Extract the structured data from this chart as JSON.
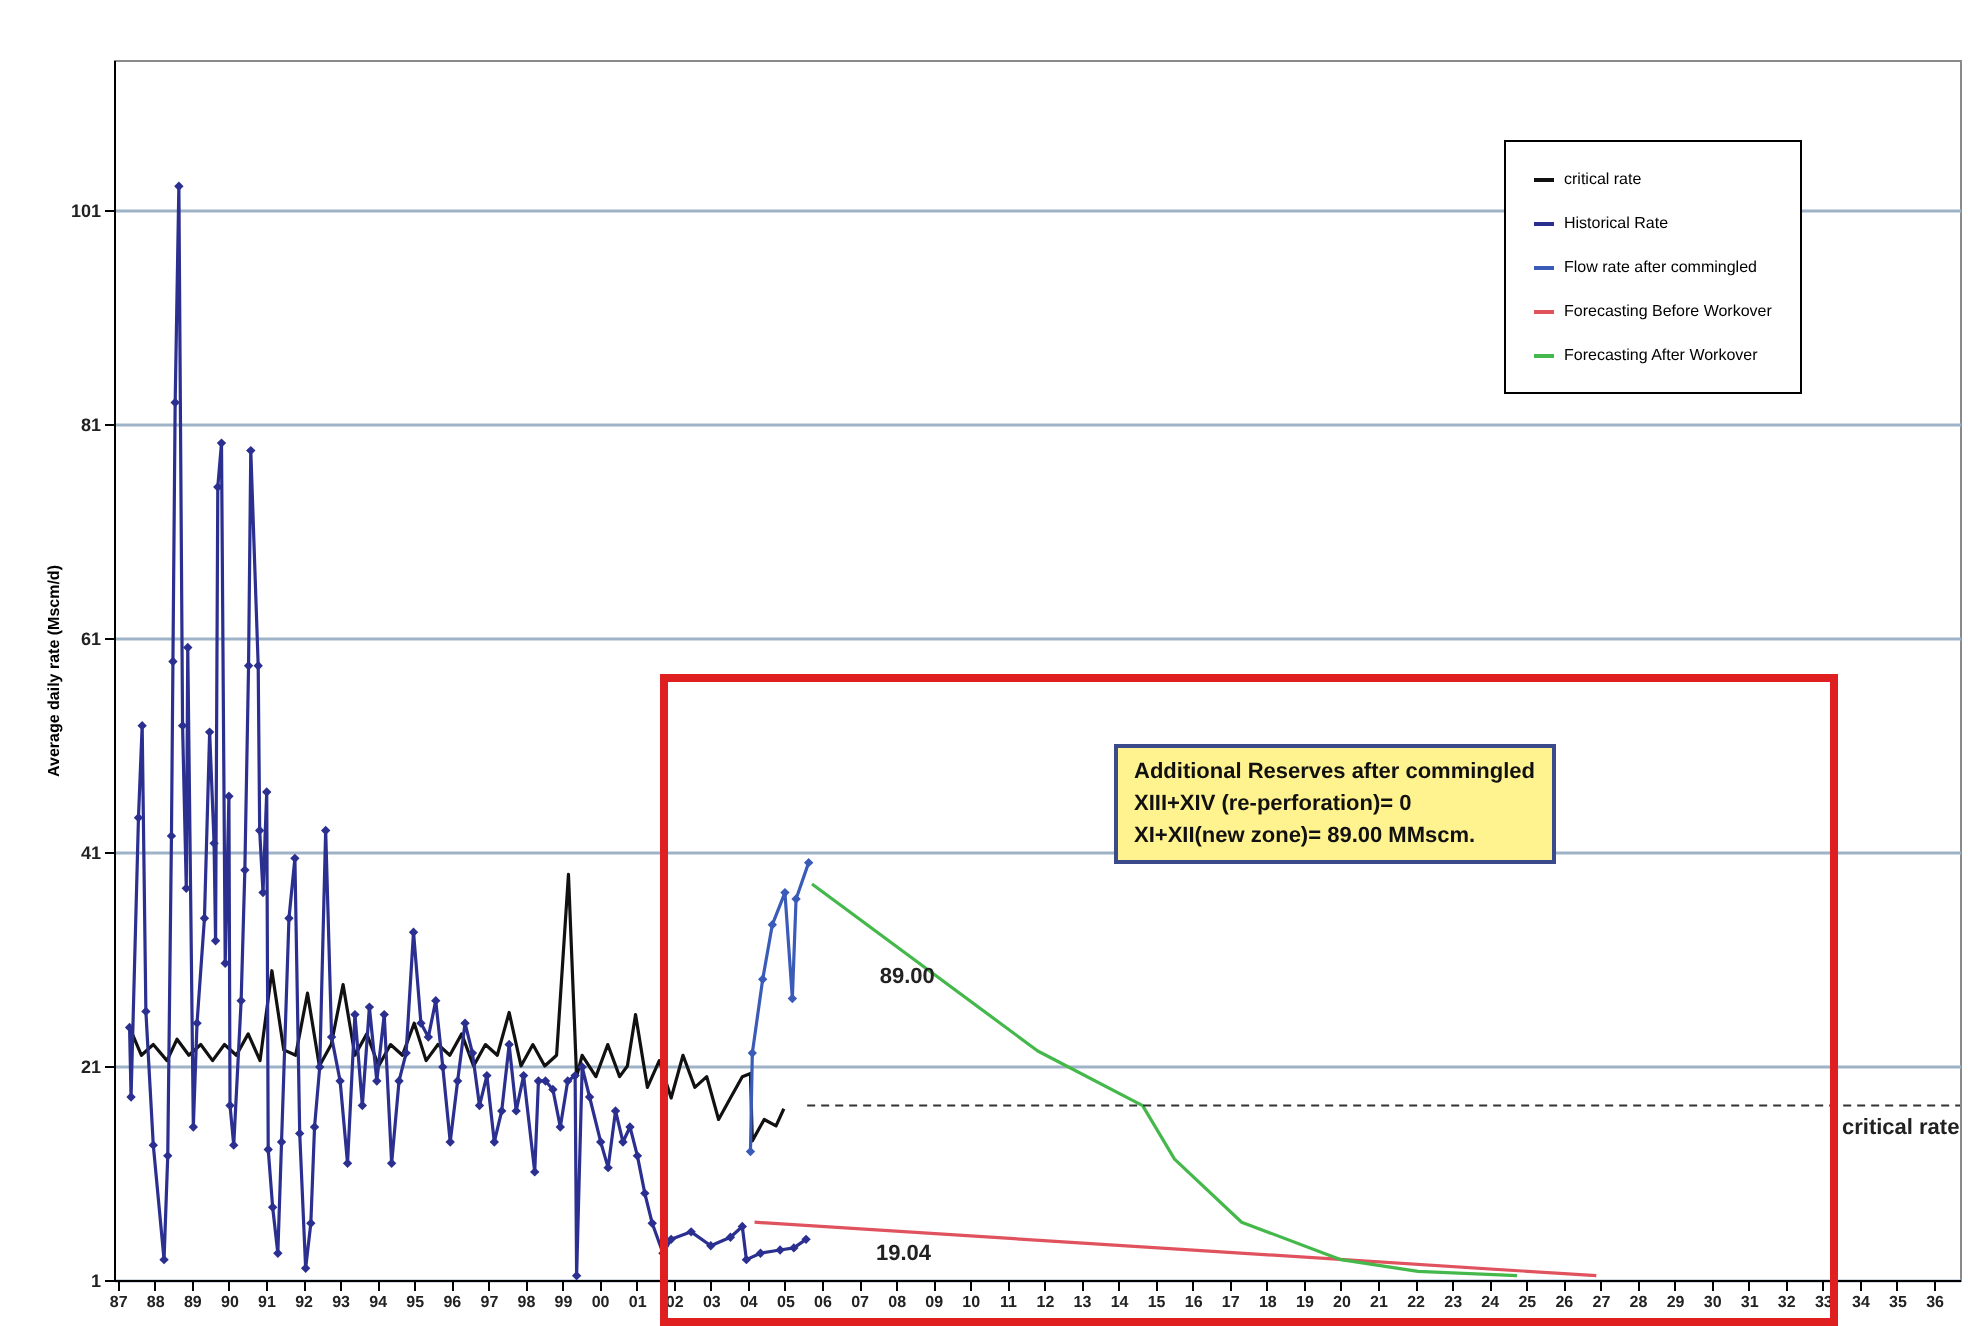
{
  "chart_data": {
    "type": "line",
    "ylabel": "Average daily rate (Mscm/d)",
    "xlim": [
      1986.9,
      2036.7
    ],
    "xticks": [
      {
        "value": 1987,
        "label": "87"
      },
      {
        "value": 1988,
        "label": "88"
      },
      {
        "value": 1989,
        "label": "89"
      },
      {
        "value": 1990,
        "label": "90"
      },
      {
        "value": 1991,
        "label": "91"
      },
      {
        "value": 1992,
        "label": "92"
      },
      {
        "value": 1993,
        "label": "93"
      },
      {
        "value": 1994,
        "label": "94"
      },
      {
        "value": 1995,
        "label": "95"
      },
      {
        "value": 1996,
        "label": "96"
      },
      {
        "value": 1997,
        "label": "97"
      },
      {
        "value": 1998,
        "label": "98"
      },
      {
        "value": 1999,
        "label": "99"
      },
      {
        "value": 2000,
        "label": "00"
      },
      {
        "value": 2001,
        "label": "01"
      },
      {
        "value": 2002,
        "label": "02"
      },
      {
        "value": 2003,
        "label": "03"
      },
      {
        "value": 2004,
        "label": "04"
      },
      {
        "value": 2005,
        "label": "05"
      },
      {
        "value": 2006,
        "label": "06"
      },
      {
        "value": 2007,
        "label": "07"
      },
      {
        "value": 2008,
        "label": "08"
      },
      {
        "value": 2009,
        "label": "09"
      },
      {
        "value": 2010,
        "label": "10"
      },
      {
        "value": 2011,
        "label": "11"
      },
      {
        "value": 2012,
        "label": "12"
      },
      {
        "value": 2013,
        "label": "13"
      },
      {
        "value": 2014,
        "label": "14"
      },
      {
        "value": 2015,
        "label": "15"
      },
      {
        "value": 2016,
        "label": "16"
      },
      {
        "value": 2017,
        "label": "17"
      },
      {
        "value": 2018,
        "label": "18"
      },
      {
        "value": 2019,
        "label": "19"
      },
      {
        "value": 2020,
        "label": "20"
      },
      {
        "value": 2021,
        "label": "21"
      },
      {
        "value": 2022,
        "label": "22"
      },
      {
        "value": 2023,
        "label": "23"
      },
      {
        "value": 2024,
        "label": "24"
      },
      {
        "value": 2025,
        "label": "25"
      },
      {
        "value": 2026,
        "label": "26"
      },
      {
        "value": 2027,
        "label": "27"
      },
      {
        "value": 2028,
        "label": "28"
      },
      {
        "value": 2029,
        "label": "29"
      },
      {
        "value": 2030,
        "label": "30"
      },
      {
        "value": 2031,
        "label": "31"
      },
      {
        "value": 2032,
        "label": "32"
      },
      {
        "value": 2033,
        "label": "33"
      },
      {
        "value": 2034,
        "label": "34"
      },
      {
        "value": 2035,
        "label": "35"
      },
      {
        "value": 2036,
        "label": "36"
      }
    ],
    "ylim": [
      1,
      115
    ],
    "yticks": [
      1,
      21,
      41,
      61,
      81,
      101
    ],
    "grid": "y",
    "legend": "top right",
    "series": [
      {
        "name": "critical rate",
        "color": "#111111",
        "marker": "none",
        "x": [
          1987.32,
          1987.64,
          1987.96,
          1988.33,
          1988.6,
          1988.92,
          1989.24,
          1989.56,
          1989.88,
          1990.2,
          1990.52,
          1990.84,
          1991.16,
          1991.48,
          1991.8,
          1992.12,
          1992.44,
          1992.76,
          1993.08,
          1993.4,
          1993.72,
          1994.04,
          1994.36,
          1994.68,
          1995.0,
          1995.32,
          1995.64,
          1995.96,
          1996.28,
          1996.6,
          1996.92,
          1997.24,
          1997.56,
          1997.88,
          1998.2,
          1998.52,
          1998.84,
          1999.16,
          1999.38,
          1999.53,
          1999.9,
          2000.22,
          2000.54,
          2000.75,
          2000.97,
          2001.29,
          2001.61,
          2001.93,
          2002.25,
          2002.57,
          2002.89,
          2003.21,
          2003.53,
          2003.85,
          2004.07,
          2004.12,
          2004.44,
          2004.76,
          2004.97
        ],
        "values": [
          24.6,
          22,
          23,
          21.5,
          23.5,
          22,
          23,
          21.5,
          23,
          22,
          24,
          21.5,
          29.9,
          22.5,
          22,
          27.8,
          21,
          23,
          28.6,
          22,
          24,
          21,
          23,
          22,
          25,
          21.5,
          23,
          22,
          24,
          21,
          23,
          22,
          26,
          21,
          23,
          21,
          22,
          38.9,
          20,
          22,
          20,
          23,
          20,
          21,
          25.8,
          19,
          21.5,
          18,
          22,
          19,
          20,
          16,
          18,
          20,
          20.3,
          14,
          16,
          15.4,
          17
        ]
      },
      {
        "name": "Historical Rate",
        "color": "#2b2f8f",
        "marker": "diamond",
        "x": [
          1987.32,
          1987.36,
          1987.56,
          1987.66,
          1987.76,
          1987.96,
          1988.25,
          1988.35,
          1988.45,
          1988.49,
          1988.55,
          1988.65,
          1988.75,
          1988.85,
          1988.89,
          1989.04,
          1989.14,
          1989.34,
          1989.48,
          1989.6,
          1989.64,
          1989.7,
          1989.8,
          1989.9,
          1990.0,
          1990.03,
          1990.13,
          1990.33,
          1990.43,
          1990.53,
          1990.59,
          1990.79,
          1990.83,
          1990.92,
          1991.02,
          1991.06,
          1991.18,
          1991.32,
          1991.42,
          1991.62,
          1991.78,
          1991.91,
          1992.07,
          1992.21,
          1992.31,
          1992.45,
          1992.61,
          1992.77,
          1993.0,
          1993.2,
          1993.4,
          1993.6,
          1993.79,
          1993.99,
          1994.19,
          1994.39,
          1994.59,
          1994.78,
          1994.98,
          1995.18,
          1995.38,
          1995.58,
          1995.77,
          1995.97,
          1996.17,
          1996.37,
          1996.57,
          1996.76,
          1996.96,
          1997.16,
          1997.36,
          1997.56,
          1997.75,
          1997.95,
          1998.25,
          1998.35,
          1998.54,
          1998.74,
          1998.94,
          1999.14,
          1999.34,
          1999.38,
          1999.53,
          1999.73,
          2000.03,
          2000.23,
          2000.43,
          2000.63,
          2000.82,
          2001.02,
          2001.22,
          2001.42,
          2001.71,
          2001.93,
          2002.47,
          2003.0,
          2003.53,
          2003.85,
          2003.96,
          2004.34,
          2004.87,
          2005.24,
          2005.57
        ],
        "values": [
          24.6,
          18.1,
          44.2,
          52.8,
          26.1,
          13.6,
          2.9,
          12.6,
          42.5,
          58.8,
          83,
          103.2,
          52.8,
          37.6,
          60.1,
          15.3,
          25,
          34.8,
          52.2,
          41.8,
          32.7,
          75.1,
          79.2,
          30.6,
          46.2,
          17.3,
          13.6,
          27.1,
          39.3,
          58.4,
          78.5,
          58.4,
          43,
          37.2,
          46.6,
          13.2,
          7.8,
          3.5,
          13.9,
          34.8,
          40.4,
          14.7,
          2.1,
          6.3,
          15.3,
          20.9,
          43,
          23.7,
          19.6,
          11.9,
          25.8,
          17.3,
          26.5,
          19.6,
          25.8,
          11.9,
          19.6,
          22.2,
          33.5,
          25,
          23.7,
          27.1,
          20.9,
          13.9,
          19.6,
          25,
          22.2,
          17.3,
          20.1,
          13.9,
          16.8,
          23,
          16.8,
          20.1,
          11.1,
          19.6,
          19.6,
          18.8,
          15.3,
          19.6,
          20.1,
          1.4,
          20.9,
          18.1,
          13.9,
          11.5,
          16.8,
          13.9,
          15.3,
          12.6,
          9.1,
          6.3,
          3.5,
          4.8,
          5.5,
          4.2,
          5,
          6,
          2.9,
          3.5,
          3.8,
          4,
          4.8
        ]
      },
      {
        "name": "Flow rate after commingled",
        "color": "#3a5cb8",
        "marker": "diamond",
        "x": [
          2004.07,
          2004.12,
          2004.4,
          2004.66,
          2005.0,
          2005.2,
          2005.3,
          2005.64
        ],
        "values": [
          13,
          22.2,
          29.1,
          34.2,
          37.2,
          27.3,
          36.6,
          40
        ]
      },
      {
        "name": "Forecasting Before Workover",
        "color": "#e0525e",
        "marker": "none",
        "x": [
          2004.18,
          2026.89
        ],
        "values": [
          6.4,
          1.4
        ]
      },
      {
        "name": "Forecasting After Workover",
        "color": "#44b84a",
        "marker": "none",
        "x": [
          2005.73,
          2011.82,
          2014.65,
          2015.51,
          2017.32,
          2020.0,
          2022.08,
          2024.75
        ],
        "values": [
          38,
          22.4,
          17.3,
          12.3,
          6.4,
          2.9,
          1.8,
          1.4
        ]
      },
      {
        "color": "#333333",
        "marker": "none",
        "line_style": "dashed",
        "x": [
          2005.6,
          2036.7
        ],
        "values": [
          17.3,
          17.3
        ]
      }
    ],
    "annotations": [
      "Additional Reserves after commingled",
      "XIII+XIV (re-perforation)= 0",
      "XI+XII(new zone)= 89.00 MMscm.",
      {
        "text": "89.00",
        "x": 2008.3,
        "y": 31.4
      },
      {
        "text": "19.04",
        "x": 2008.2,
        "y": 5.5
      },
      {
        "text": "critical rate",
        "x": 2035.1,
        "y": 17.3
      }
    ]
  }
}
